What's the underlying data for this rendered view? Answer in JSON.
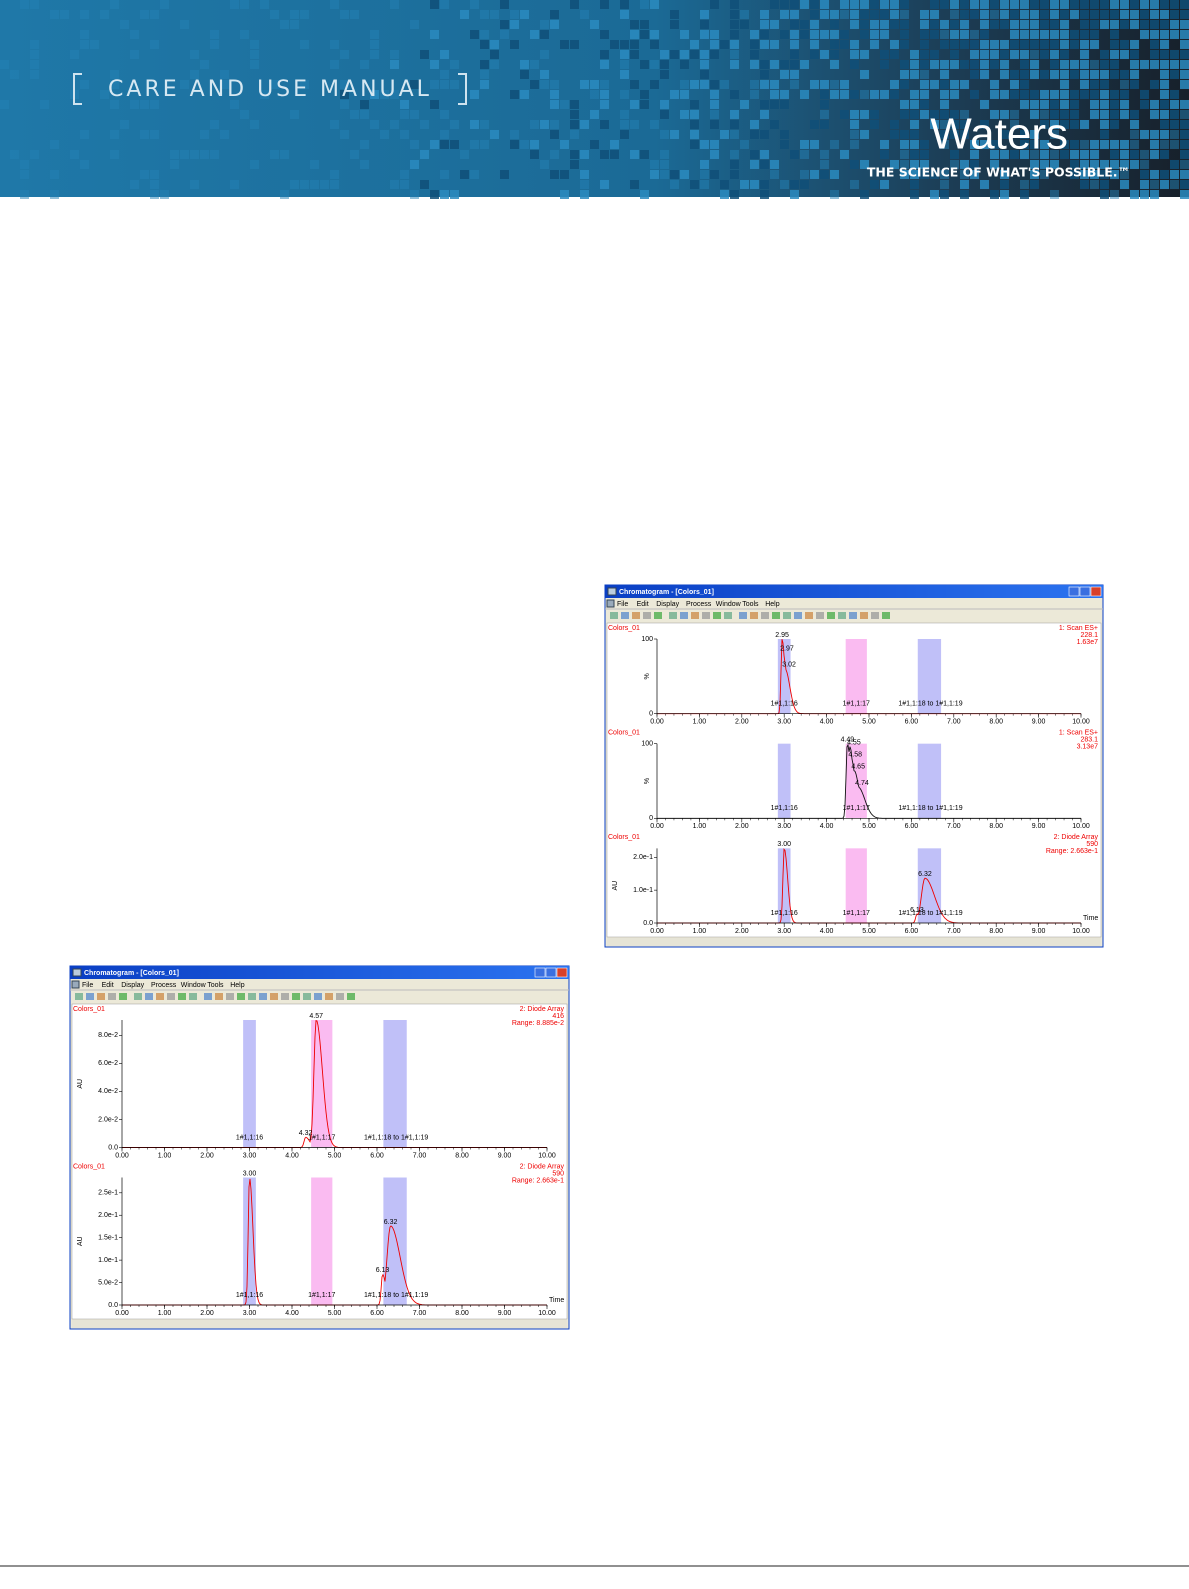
{
  "header": {
    "title": "CARE AND USE MANUAL",
    "brand": "Waters",
    "tagline": "THE SCIENCE OF WHAT'S POSSIBLE.™"
  },
  "windows": [
    {
      "title": "Chromatogram - [Colors_01]",
      "menu": [
        "File",
        "Edit",
        "Display",
        "Process",
        "Window",
        "Tools",
        "Help"
      ],
      "xticks": [
        "0.00",
        "1.00",
        "2.00",
        "3.00",
        "4.00",
        "5.00",
        "6.00",
        "7.00",
        "8.00",
        "9.00",
        "10.00"
      ],
      "panels": [
        {
          "sample": "Colors_01",
          "info": [
            "1: Scan ES+",
            "228.1",
            "1.63e7"
          ],
          "ylabel": "%",
          "yticks": [
            "0",
            "100"
          ],
          "peaks": [
            "2.95",
            "2.97",
            "3.02"
          ],
          "regions": [
            "1#1,1:16",
            "1#1,1:17",
            "1#1,1:18 to 1#1,1:19"
          ]
        },
        {
          "sample": "Colors_01",
          "info": [
            "1: Scan ES+",
            "283.1",
            "3.13e7"
          ],
          "ylabel": "%",
          "yticks": [
            "0",
            "100"
          ],
          "peaks": [
            "4.49",
            "4.55",
            "4.58",
            "4.65",
            "4.74"
          ],
          "regions": [
            "1#1,1:16",
            "1#1,1:17",
            "1#1,1:18 to 1#1,1:19"
          ]
        },
        {
          "sample": "Colors_01",
          "info": [
            "2: Diode Array",
            "590",
            "Range: 2.663e-1"
          ],
          "ylabel": "AU",
          "xlabel": "Time",
          "yticks": [
            "0.0",
            "1.0e-1",
            "2.0e-1"
          ],
          "peaks": [
            "3.00",
            "6.13",
            "6.32"
          ],
          "regions": [
            "1#1,1:16",
            "1#1,1:17",
            "1#1,1:18 to 1#1,1:19"
          ]
        }
      ]
    },
    {
      "title": "Chromatogram - [Colors_01]",
      "menu": [
        "File",
        "Edit",
        "Display",
        "Process",
        "Window",
        "Tools",
        "Help"
      ],
      "xticks": [
        "0.00",
        "1.00",
        "2.00",
        "3.00",
        "4.00",
        "5.00",
        "6.00",
        "7.00",
        "8.00",
        "9.00",
        "10.00"
      ],
      "panels": [
        {
          "sample": "Colors_01",
          "info": [
            "2: Diode Array",
            "416",
            "Range: 8.885e-2"
          ],
          "ylabel": "AU",
          "yticks": [
            "0.0",
            "2.0e-2",
            "4.0e-2",
            "6.0e-2",
            "8.0e-2"
          ],
          "peaks": [
            "4.32",
            "4.57"
          ],
          "regions": [
            "1#1,1:16",
            "1#1,1:17",
            "1#1,1:18 to 1#1,1:19"
          ]
        },
        {
          "sample": "Colors_01",
          "info": [
            "2: Diode Array",
            "590",
            "Range: 2.663e-1"
          ],
          "ylabel": "AU",
          "xlabel": "Time",
          "yticks": [
            "0.0",
            "5.0e-2",
            "1.0e-1",
            "1.5e-1",
            "2.0e-1",
            "2.5e-1"
          ],
          "peaks": [
            "3.00",
            "6.13",
            "6.32"
          ],
          "regions": [
            "1#1,1:16",
            "1#1,1:17",
            "1#1,1:18 to 1#1,1:19"
          ]
        }
      ]
    }
  ]
}
